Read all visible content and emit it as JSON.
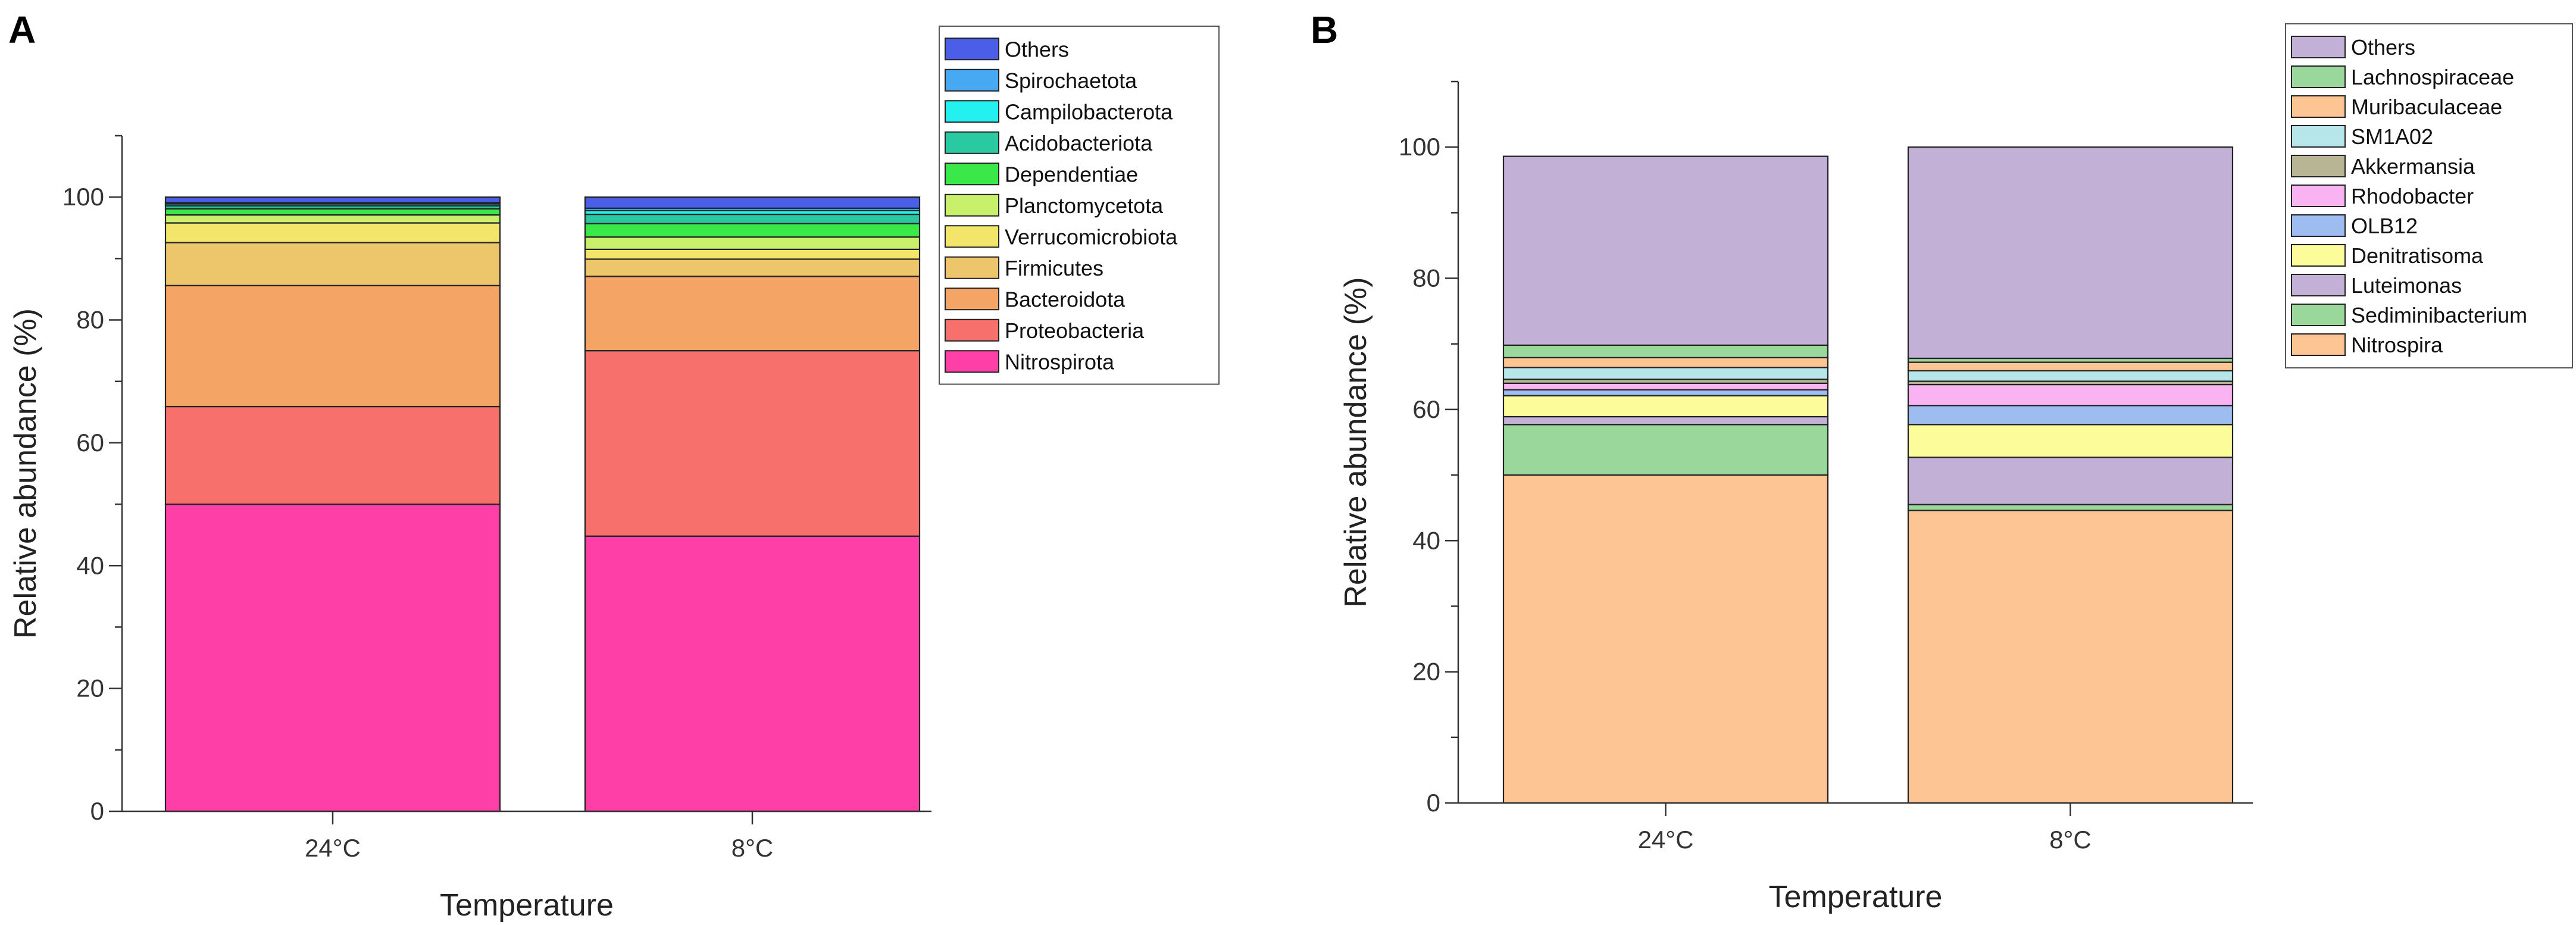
{
  "chart_data": [
    {
      "panel": "A",
      "type": "bar",
      "stacked": true,
      "xlabel": "Temperature",
      "ylabel": "Relative abundance (%)",
      "ylim": [
        0,
        110
      ],
      "yticks": [
        0,
        20,
        40,
        60,
        80,
        100
      ],
      "categories": [
        "24°C",
        "8°C"
      ],
      "legend_order": [
        "Others",
        "Spirochaetota",
        "Campilobacterota",
        "Acidobacteriota",
        "Dependentiae",
        "Planctomycetota",
        "Verrucomicrobiota",
        "Firmicutes",
        "Bacteroidota",
        "Proteobacteria",
        "Nitrospirota"
      ],
      "legend_position": "top-right",
      "series": [
        {
          "name": "Nitrospirota",
          "color": "#ff3fa8",
          "values": [
            50.0,
            44.8
          ]
        },
        {
          "name": "Proteobacteria",
          "color": "#f7706b",
          "values": [
            15.9,
            30.2
          ]
        },
        {
          "name": "Bacteroidota",
          "color": "#f4a465",
          "values": [
            19.7,
            12.1
          ]
        },
        {
          "name": "Firmicutes",
          "color": "#edc56a",
          "values": [
            7.0,
            2.8
          ]
        },
        {
          "name": "Verrucomicrobiota",
          "color": "#f2e56a",
          "values": [
            3.2,
            1.6
          ]
        },
        {
          "name": "Planctomycetota",
          "color": "#c8f06a",
          "values": [
            1.3,
            2.0
          ]
        },
        {
          "name": "Dependentiae",
          "color": "#3be84a",
          "values": [
            1.0,
            2.2
          ]
        },
        {
          "name": "Acidobacteriota",
          "color": "#29c9a2",
          "values": [
            0.5,
            1.5
          ]
        },
        {
          "name": "Campilobacterota",
          "color": "#23f0ef",
          "values": [
            0.3,
            0.6
          ]
        },
        {
          "name": "Spirochaetota",
          "color": "#48a9f3",
          "values": [
            0.2,
            0.4
          ]
        },
        {
          "name": "Others",
          "color": "#4a5ee8",
          "values": [
            0.9,
            1.8
          ]
        }
      ]
    },
    {
      "panel": "B",
      "type": "bar",
      "stacked": true,
      "xlabel": "Temperature",
      "ylabel": "Relative abundance (%)",
      "ylim": [
        0,
        110
      ],
      "yticks": [
        0,
        20,
        40,
        60,
        80,
        100
      ],
      "categories": [
        "24°C",
        "8°C"
      ],
      "legend_order": [
        "Others",
        "Lachnospiraceae",
        "Muribaculaceae",
        "SM1A02",
        "Akkermansia",
        "Rhodobacter",
        "OLB12",
        "Denitratisoma",
        "Luteimonas",
        "Sediminibacterium",
        "Nitrospira"
      ],
      "legend_position": "top-right",
      "series": [
        {
          "name": "Nitrospira",
          "color": "#fdc594",
          "values": [
            50.0,
            44.6
          ]
        },
        {
          "name": "Sediminibacterium",
          "color": "#9ad79b",
          "values": [
            7.7,
            0.9
          ]
        },
        {
          "name": "Luteimonas",
          "color": "#c2b0d6",
          "values": [
            1.2,
            7.2
          ]
        },
        {
          "name": "Denitratisoma",
          "color": "#fcfc9a",
          "values": [
            3.2,
            5.0
          ]
        },
        {
          "name": "OLB12",
          "color": "#9dbcf0",
          "values": [
            0.9,
            2.9
          ]
        },
        {
          "name": "Rhodobacter",
          "color": "#f9b3f2",
          "values": [
            1.0,
            3.2
          ]
        },
        {
          "name": "Akkermansia",
          "color": "#b7b593",
          "values": [
            0.6,
            0.5
          ]
        },
        {
          "name": "SM1A02",
          "color": "#b7e6ea",
          "values": [
            1.8,
            1.6
          ]
        },
        {
          "name": "Muribaculaceae",
          "color": "#fdc594",
          "values": [
            1.5,
            1.3
          ]
        },
        {
          "name": "Lachnospiraceae",
          "color": "#9ad79b",
          "values": [
            1.9,
            0.6
          ]
        },
        {
          "name": "Others",
          "color": "#c2b0d6",
          "values": [
            28.8,
            32.2
          ]
        }
      ]
    }
  ],
  "panels": {
    "a": {
      "letter": "A"
    },
    "b": {
      "letter": "B"
    }
  }
}
